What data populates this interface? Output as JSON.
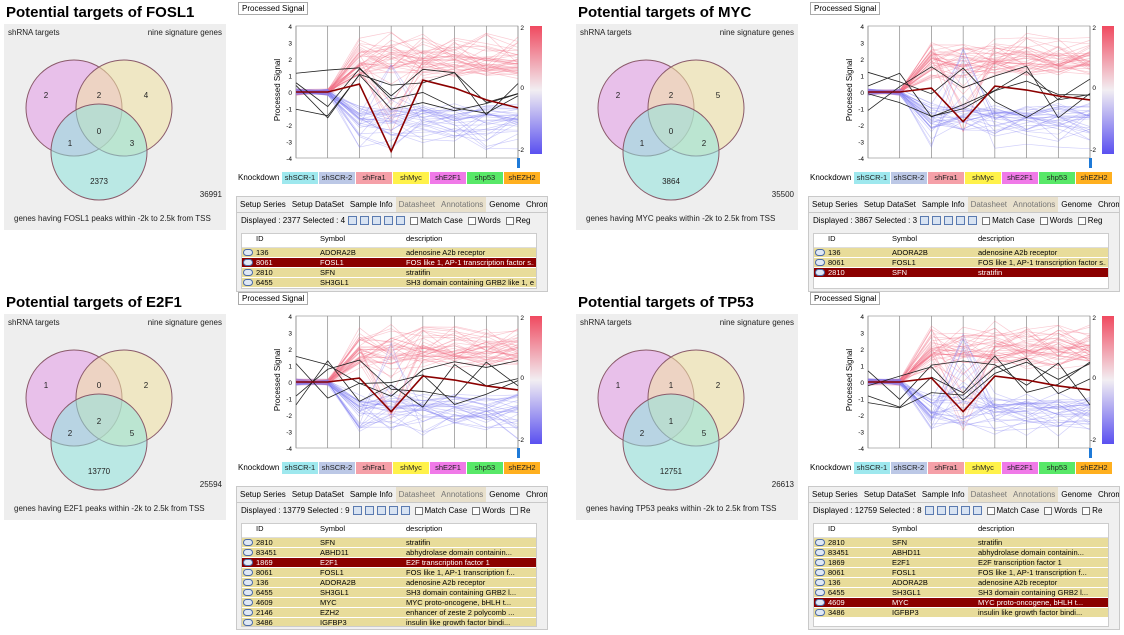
{
  "colors": {
    "shrna": "#e39be8",
    "signature": "#f0e2a2",
    "peaks": "#8fe3dc",
    "selected_row": "#8b0000",
    "row_bg": "#e8dc9a",
    "red_line": "#8b0000",
    "dark_line": "#222222"
  },
  "panels": [
    {
      "title": "Potential targets of FOSL1",
      "venn": {
        "left_label": "shRNA targets",
        "right_label": "nine signature genes",
        "bottom_label": "genes having FOSL1 peaks within -2k to 2.5k from TSS",
        "outside": "36991",
        "a_only": "2",
        "ab": "2",
        "b_only": "4",
        "abc": "0",
        "ac": "1",
        "bc": "3",
        "c_only": "2373"
      },
      "select": "Processed Signal",
      "y_axis_label": "Processed Signal",
      "y_ticks": [
        "4",
        "3",
        "2",
        "1",
        "0",
        "-1",
        "-2",
        "-3",
        "-4"
      ],
      "scale_ticks": [
        "2",
        "0",
        "-2"
      ],
      "knockdown_label": "Knockdown",
      "knockdowns": [
        "shSCR-1",
        "shSCR-2",
        "shFra1",
        "shMyc",
        "shE2F1",
        "shp53",
        "shEZH2"
      ],
      "tabs": [
        "Setup Series",
        "Setup DataSet",
        "Sample Info",
        "Datasheet",
        "Annotations",
        "Genome",
        "Chromosome"
      ],
      "displayed": "Displayed : 2377  Selected : 4",
      "match_case": "Match Case",
      "words": "Words",
      "regex": "Reg",
      "columns": [
        "ID",
        "Symbol",
        "description"
      ],
      "rows": [
        {
          "id": "136",
          "sym": "ADORA2B",
          "desc": "adenosine A2b receptor",
          "sel": false
        },
        {
          "id": "8061",
          "sym": "FOSL1",
          "desc": "FOS like 1, AP-1 transcription factor s...",
          "sel": true
        },
        {
          "id": "2810",
          "sym": "SFN",
          "desc": "stratifin",
          "sel": false
        },
        {
          "id": "6455",
          "sym": "SH3GL1",
          "desc": "SH3 domain containing GRB2 like 1, e...",
          "sel": false
        }
      ]
    },
    {
      "title": "Potential targets of MYC",
      "venn": {
        "left_label": "shRNA targets",
        "right_label": "nine signature genes",
        "bottom_label": "genes having MYC peaks within -2k to 2.5k from TSS",
        "outside": "35500",
        "a_only": "2",
        "ab": "2",
        "b_only": "5",
        "abc": "0",
        "ac": "1",
        "bc": "2",
        "c_only": "3864"
      },
      "select": "Processed Signal",
      "y_axis_label": "Processed Signal",
      "y_ticks": [
        "4",
        "3",
        "2",
        "1",
        "0",
        "-1",
        "-2",
        "-3",
        "-4"
      ],
      "scale_ticks": [
        "2",
        "0",
        "-2"
      ],
      "knockdown_label": "Knockdown",
      "knockdowns": [
        "shSCR-1",
        "shSCR-2",
        "shFra1",
        "shMyc",
        "shE2F1",
        "shp53",
        "shEZH2"
      ],
      "tabs": [
        "Setup Series",
        "Setup DataSet",
        "Sample Info",
        "Datasheet",
        "Annotations",
        "Genome",
        "Chromosome"
      ],
      "displayed": "Displayed : 3867  Selected : 3",
      "match_case": "Match Case",
      "words": "Words",
      "regex": "Reg",
      "columns": [
        "ID",
        "Symbol",
        "description"
      ],
      "rows": [
        {
          "id": "136",
          "sym": "ADORA2B",
          "desc": "adenosine A2b receptor",
          "sel": false
        },
        {
          "id": "8061",
          "sym": "FOSL1",
          "desc": "FOS like 1, AP-1 transcription factor s...",
          "sel": false
        },
        {
          "id": "2810",
          "sym": "SFN",
          "desc": "stratifin",
          "sel": true
        }
      ]
    },
    {
      "title": "Potential targets of E2F1",
      "venn": {
        "left_label": "shRNA targets",
        "right_label": "nine signature genes",
        "bottom_label": "genes having E2F1 peaks within -2k to 2.5k from TSS",
        "outside": "25594",
        "a_only": "1",
        "ab": "0",
        "b_only": "2",
        "abc": "2",
        "ac": "2",
        "bc": "5",
        "c_only": "13770"
      },
      "select": "Processed Signal",
      "y_axis_label": "Processed Signal",
      "y_ticks": [
        "4",
        "3",
        "2",
        "1",
        "0",
        "-1",
        "-2",
        "-3",
        "-4"
      ],
      "scale_ticks": [
        "2",
        "0",
        "-2"
      ],
      "knockdown_label": "Knockdown",
      "knockdowns": [
        "shSCR-1",
        "shSCR-2",
        "shFra1",
        "shMyc",
        "shE2F1",
        "shp53",
        "shEZH2"
      ],
      "tabs": [
        "Setup Series",
        "Setup DataSet",
        "Sample Info",
        "Datasheet",
        "Annotations",
        "Genome",
        "Chromosome"
      ],
      "displayed": "Displayed : 13779  Selected : 9",
      "match_case": "Match Case",
      "words": "Words",
      "regex": "Re",
      "columns": [
        "ID",
        "Symbol",
        "description"
      ],
      "rows": [
        {
          "id": "2810",
          "sym": "SFN",
          "desc": "stratifin",
          "sel": false
        },
        {
          "id": "83451",
          "sym": "ABHD11",
          "desc": "abhydrolase domain containin...",
          "sel": false
        },
        {
          "id": "1869",
          "sym": "E2F1",
          "desc": "E2F transcription factor 1",
          "sel": true
        },
        {
          "id": "8061",
          "sym": "FOSL1",
          "desc": "FOS like 1, AP-1 transcription f...",
          "sel": false
        },
        {
          "id": "136",
          "sym": "ADORA2B",
          "desc": "adenosine A2b receptor",
          "sel": false
        },
        {
          "id": "6455",
          "sym": "SH3GL1",
          "desc": "SH3 domain containing GRB2 l...",
          "sel": false
        },
        {
          "id": "4609",
          "sym": "MYC",
          "desc": "MYC proto-oncogene, bHLH t...",
          "sel": false
        },
        {
          "id": "2146",
          "sym": "EZH2",
          "desc": "enhancer of zeste 2 polycomb ...",
          "sel": false
        },
        {
          "id": "3486",
          "sym": "IGFBP3",
          "desc": "insulin like growth factor bindi...",
          "sel": false
        }
      ]
    },
    {
      "title": "Potential targets of TP53",
      "venn": {
        "left_label": "shRNA targets",
        "right_label": "nine signature genes",
        "bottom_label": "genes having TP53 peaks within -2k to 2.5k from TSS",
        "outside": "26613",
        "a_only": "1",
        "ab": "1",
        "b_only": "2",
        "abc": "1",
        "ac": "2",
        "bc": "5",
        "c_only": "12751"
      },
      "select": "Processed Signal",
      "y_axis_label": "Processed Signal",
      "y_ticks": [
        "4",
        "3",
        "2",
        "1",
        "0",
        "-1",
        "-2",
        "-3",
        "-4"
      ],
      "scale_ticks": [
        "2",
        "0",
        "-2"
      ],
      "knockdown_label": "Knockdown",
      "knockdowns": [
        "shSCR-1",
        "shSCR-2",
        "shFra1",
        "shMyc",
        "shE2F1",
        "shp53",
        "shEZH2"
      ],
      "tabs": [
        "Setup Series",
        "Setup DataSet",
        "Sample Info",
        "Datasheet",
        "Annotations",
        "Genome",
        "Chromosome"
      ],
      "displayed": "Displayed : 12759  Selected : 8",
      "match_case": "Match Case",
      "words": "Words",
      "regex": "Re",
      "columns": [
        "ID",
        "Symbol",
        "description"
      ],
      "rows": [
        {
          "id": "2810",
          "sym": "SFN",
          "desc": "stratifin",
          "sel": false
        },
        {
          "id": "83451",
          "sym": "ABHD11",
          "desc": "abhydrolase domain containin...",
          "sel": false
        },
        {
          "id": "1869",
          "sym": "E2F1",
          "desc": "E2F transcription factor 1",
          "sel": false
        },
        {
          "id": "8061",
          "sym": "FOSL1",
          "desc": "FOS like 1, AP-1 transcription f...",
          "sel": false
        },
        {
          "id": "136",
          "sym": "ADORA2B",
          "desc": "adenosine A2b receptor",
          "sel": false
        },
        {
          "id": "6455",
          "sym": "SH3GL1",
          "desc": "SH3 domain containing GRB2 l...",
          "sel": false
        },
        {
          "id": "4609",
          "sym": "MYC",
          "desc": "MYC proto-oncogene, bHLH t...",
          "sel": true
        },
        {
          "id": "3486",
          "sym": "IGFBP3",
          "desc": "insulin like growth factor bindi...",
          "sel": false
        }
      ]
    }
  ]
}
